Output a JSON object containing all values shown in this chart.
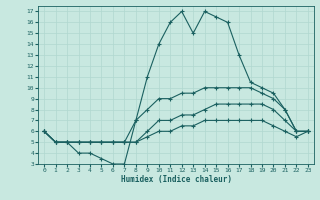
{
  "xlabel": "Humidex (Indice chaleur)",
  "bg_color": "#c8e8e0",
  "grid_color": "#b0d8d0",
  "line_color": "#1a6060",
  "xlim": [
    -0.5,
    23.5
  ],
  "ylim": [
    3,
    17.5
  ],
  "xticks": [
    0,
    1,
    2,
    3,
    4,
    5,
    6,
    7,
    8,
    9,
    10,
    11,
    12,
    13,
    14,
    15,
    16,
    17,
    18,
    19,
    20,
    21,
    22,
    23
  ],
  "yticks": [
    3,
    4,
    5,
    6,
    7,
    8,
    9,
    10,
    11,
    12,
    13,
    14,
    15,
    16,
    17
  ],
  "line1_x": [
    0,
    1,
    2,
    3,
    4,
    5,
    6,
    7,
    8,
    9,
    10,
    11,
    12,
    13,
    14,
    15,
    16,
    17,
    18,
    19,
    20,
    21,
    22,
    23
  ],
  "line1_y": [
    6,
    5,
    5,
    4,
    4,
    3.5,
    3,
    3,
    7,
    11,
    14,
    16,
    17,
    15,
    17,
    16.5,
    16,
    13,
    10.5,
    10,
    9.5,
    8,
    6,
    6
  ],
  "line2_x": [
    0,
    1,
    2,
    3,
    4,
    5,
    6,
    7,
    8,
    9,
    10,
    11,
    12,
    13,
    14,
    15,
    16,
    17,
    18,
    19,
    20,
    21,
    22,
    23
  ],
  "line2_y": [
    6,
    5,
    5,
    5,
    5,
    5,
    5,
    5,
    7,
    8,
    9,
    9,
    9.5,
    9.5,
    10,
    10,
    10,
    10,
    10,
    9.5,
    9,
    8,
    6,
    6
  ],
  "line3_x": [
    0,
    1,
    2,
    3,
    4,
    5,
    6,
    7,
    8,
    9,
    10,
    11,
    12,
    13,
    14,
    15,
    16,
    17,
    18,
    19,
    20,
    21,
    22,
    23
  ],
  "line3_y": [
    6,
    5,
    5,
    5,
    5,
    5,
    5,
    5,
    5,
    6,
    7,
    7,
    7.5,
    7.5,
    8,
    8.5,
    8.5,
    8.5,
    8.5,
    8.5,
    8,
    7,
    6,
    6
  ],
  "line4_x": [
    0,
    1,
    2,
    3,
    4,
    5,
    6,
    7,
    8,
    9,
    10,
    11,
    12,
    13,
    14,
    15,
    16,
    17,
    18,
    19,
    20,
    21,
    22,
    23
  ],
  "line4_y": [
    6,
    5,
    5,
    5,
    5,
    5,
    5,
    5,
    5,
    5.5,
    6,
    6,
    6.5,
    6.5,
    7,
    7,
    7,
    7,
    7,
    7,
    6.5,
    6,
    5.5,
    6
  ]
}
